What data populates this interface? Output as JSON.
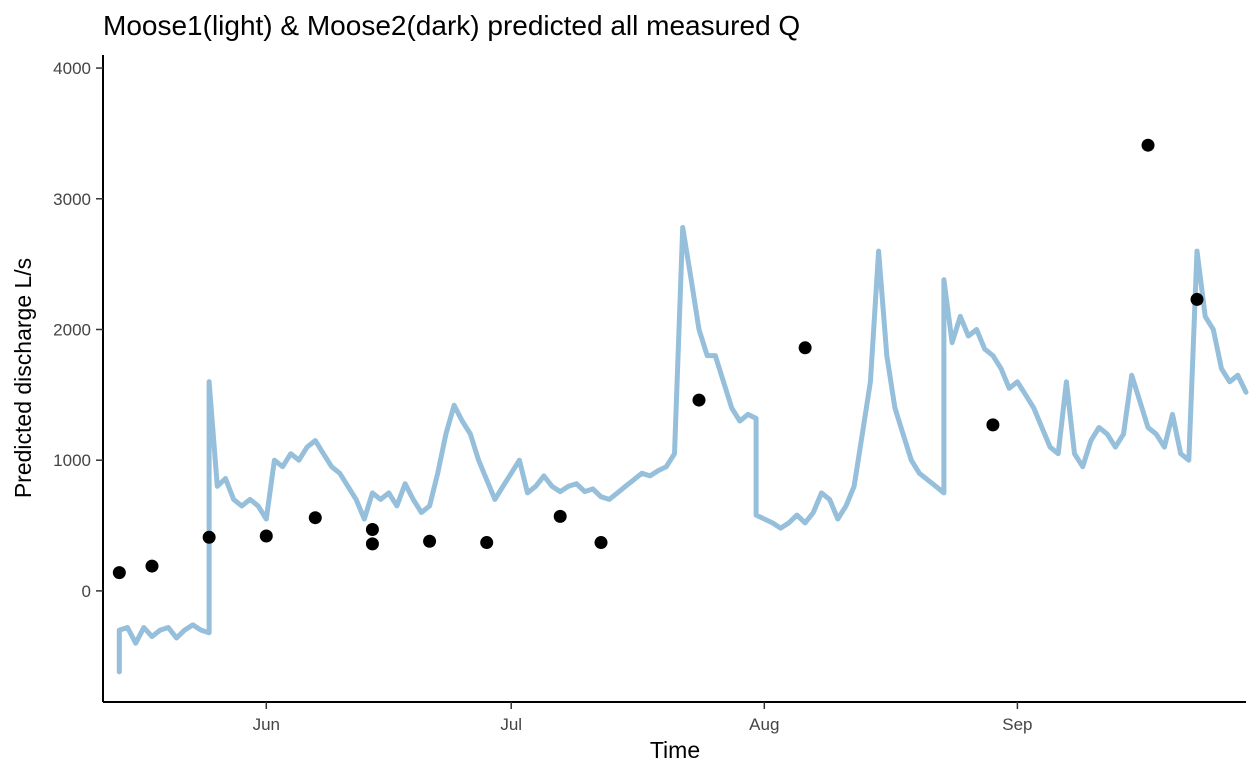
{
  "chart_data": {
    "type": "line",
    "title": "Moose1(light) & Moose2(dark) predicted all measured Q",
    "xlabel": "Time",
    "ylabel": "Predicted discharge L/s",
    "xlim": [
      "2021-05-12",
      "2021-09-29"
    ],
    "ylim": [
      -850,
      4100
    ],
    "x_ticks": [
      {
        "date": "2021-06-01",
        "label": "Jun"
      },
      {
        "date": "2021-07-01",
        "label": "Jul"
      },
      {
        "date": "2021-08-01",
        "label": "Aug"
      },
      {
        "date": "2021-09-01",
        "label": "Sep"
      }
    ],
    "y_ticks": [
      0,
      1000,
      2000,
      3000,
      4000
    ],
    "grid": false,
    "colors": {
      "light_blue": "#8fbcd8",
      "dark_blue": "#1f5fa6",
      "dark_red": "#8e1a24",
      "points": "#000000"
    },
    "series": [
      {
        "color": "#8fbcd8",
        "style": "line",
        "points": [
          [
            "2021-05-14",
            -620
          ],
          [
            "2021-05-14",
            -300
          ],
          [
            "2021-05-15",
            -280
          ],
          [
            "2021-05-16",
            -400
          ],
          [
            "2021-05-17",
            -280
          ],
          [
            "2021-05-18",
            -350
          ],
          [
            "2021-05-19",
            -300
          ],
          [
            "2021-05-20",
            -280
          ],
          [
            "2021-05-21",
            -360
          ],
          [
            "2021-05-22",
            -300
          ],
          [
            "2021-05-23",
            -260
          ],
          [
            "2021-05-24",
            -300
          ],
          [
            "2021-05-25",
            -320
          ],
          [
            "2021-05-25",
            1600
          ],
          [
            "2021-05-26",
            800
          ],
          [
            "2021-05-27",
            860
          ],
          [
            "2021-05-28",
            700
          ],
          [
            "2021-05-29",
            650
          ],
          [
            "2021-05-30",
            700
          ],
          [
            "2021-05-31",
            650
          ],
          [
            "2021-06-01",
            550
          ],
          [
            "2021-06-02",
            1000
          ],
          [
            "2021-06-03",
            950
          ],
          [
            "2021-06-04",
            1050
          ],
          [
            "2021-06-05",
            1000
          ],
          [
            "2021-06-06",
            1100
          ],
          [
            "2021-06-07",
            1150
          ],
          [
            "2021-06-08",
            1050
          ],
          [
            "2021-06-09",
            950
          ],
          [
            "2021-06-10",
            900
          ],
          [
            "2021-06-11",
            800
          ],
          [
            "2021-06-12",
            700
          ],
          [
            "2021-06-13",
            550
          ],
          [
            "2021-06-14",
            750
          ],
          [
            "2021-06-15",
            700
          ],
          [
            "2021-06-16",
            750
          ],
          [
            "2021-06-17",
            650
          ],
          [
            "2021-06-18",
            820
          ],
          [
            "2021-06-19",
            700
          ],
          [
            "2021-06-20",
            600
          ],
          [
            "2021-06-21",
            650
          ],
          [
            "2021-06-22",
            900
          ],
          [
            "2021-06-23",
            1200
          ],
          [
            "2021-06-24",
            1420
          ],
          [
            "2021-06-25",
            1300
          ],
          [
            "2021-06-26",
            1200
          ],
          [
            "2021-06-27",
            1000
          ],
          [
            "2021-06-28",
            850
          ],
          [
            "2021-06-29",
            700
          ],
          [
            "2021-06-30",
            800
          ],
          [
            "2021-07-01",
            900
          ],
          [
            "2021-07-02",
            1000
          ],
          [
            "2021-07-03",
            750
          ],
          [
            "2021-07-04",
            800
          ],
          [
            "2021-07-05",
            880
          ],
          [
            "2021-07-06",
            800
          ],
          [
            "2021-07-07",
            760
          ],
          [
            "2021-07-08",
            800
          ],
          [
            "2021-07-09",
            820
          ],
          [
            "2021-07-10",
            760
          ],
          [
            "2021-07-11",
            780
          ],
          [
            "2021-07-12",
            720
          ],
          [
            "2021-07-13",
            700
          ],
          [
            "2021-07-14",
            750
          ],
          [
            "2021-07-15",
            800
          ],
          [
            "2021-07-16",
            850
          ],
          [
            "2021-07-17",
            900
          ],
          [
            "2021-07-18",
            880
          ],
          [
            "2021-07-19",
            920
          ],
          [
            "2021-07-20",
            950
          ],
          [
            "2021-07-21",
            1050
          ],
          [
            "2021-07-22",
            2780
          ],
          [
            "2021-07-23",
            2400
          ],
          [
            "2021-07-24",
            2000
          ],
          [
            "2021-07-25",
            1800
          ],
          [
            "2021-07-26",
            1800
          ],
          [
            "2021-07-27",
            1600
          ],
          [
            "2021-07-28",
            1400
          ],
          [
            "2021-07-29",
            1300
          ],
          [
            "2021-07-30",
            1350
          ],
          [
            "2021-07-31",
            1320
          ],
          [
            "2021-07-31",
            580
          ],
          [
            "2021-08-01",
            550
          ],
          [
            "2021-08-02",
            520
          ],
          [
            "2021-08-03",
            480
          ],
          [
            "2021-08-04",
            520
          ],
          [
            "2021-08-05",
            580
          ],
          [
            "2021-08-06",
            520
          ],
          [
            "2021-08-07",
            600
          ],
          [
            "2021-08-08",
            750
          ],
          [
            "2021-08-09",
            700
          ],
          [
            "2021-08-10",
            550
          ],
          [
            "2021-08-11",
            650
          ],
          [
            "2021-08-12",
            800
          ],
          [
            "2021-08-13",
            1200
          ],
          [
            "2021-08-14",
            1600
          ],
          [
            "2021-08-15",
            2600
          ],
          [
            "2021-08-16",
            1800
          ],
          [
            "2021-08-17",
            1400
          ],
          [
            "2021-08-18",
            1200
          ],
          [
            "2021-08-19",
            1000
          ],
          [
            "2021-08-20",
            900
          ],
          [
            "2021-08-21",
            850
          ],
          [
            "2021-08-22",
            800
          ],
          [
            "2021-08-23",
            750
          ],
          [
            "2021-08-23",
            2380
          ],
          [
            "2021-08-24",
            1900
          ],
          [
            "2021-08-25",
            2100
          ],
          [
            "2021-08-26",
            1950
          ],
          [
            "2021-08-27",
            2000
          ],
          [
            "2021-08-28",
            1850
          ],
          [
            "2021-08-29",
            1800
          ],
          [
            "2021-08-30",
            1700
          ],
          [
            "2021-08-31",
            1550
          ],
          [
            "2021-09-01",
            1600
          ],
          [
            "2021-09-02",
            1500
          ],
          [
            "2021-09-03",
            1400
          ],
          [
            "2021-09-04",
            1250
          ],
          [
            "2021-09-05",
            1100
          ],
          [
            "2021-09-06",
            1050
          ],
          [
            "2021-09-07",
            1600
          ],
          [
            "2021-09-08",
            1050
          ],
          [
            "2021-09-09",
            950
          ],
          [
            "2021-09-10",
            1150
          ],
          [
            "2021-09-11",
            1250
          ],
          [
            "2021-09-12",
            1200
          ],
          [
            "2021-09-13",
            1100
          ],
          [
            "2021-09-14",
            1200
          ],
          [
            "2021-09-15",
            1650
          ],
          [
            "2021-09-16",
            1450
          ],
          [
            "2021-09-17",
            1250
          ],
          [
            "2021-09-18",
            1200
          ],
          [
            "2021-09-19",
            1100
          ],
          [
            "2021-09-20",
            1350
          ],
          [
            "2021-09-21",
            1050
          ],
          [
            "2021-09-22",
            1000
          ],
          [
            "2021-09-23",
            2600
          ],
          [
            "2021-09-24",
            2100
          ],
          [
            "2021-09-25",
            2000
          ],
          [
            "2021-09-26",
            1700
          ],
          [
            "2021-09-27",
            1600
          ],
          [
            "2021-09-28",
            1650
          ],
          [
            "2021-09-29",
            1520
          ]
        ]
      }
    ],
    "measured_points": [
      [
        "2021-05-14",
        140
      ],
      [
        "2021-05-18",
        190
      ],
      [
        "2021-05-25",
        410
      ],
      [
        "2021-06-01",
        420
      ],
      [
        "2021-06-07",
        560
      ],
      [
        "2021-06-14",
        470
      ],
      [
        "2021-06-14",
        360
      ],
      [
        "2021-06-21",
        380
      ],
      [
        "2021-06-28",
        370
      ],
      [
        "2021-07-07",
        570
      ],
      [
        "2021-07-12",
        370
      ],
      [
        "2021-07-24",
        1460
      ],
      [
        "2021-08-06",
        1860
      ],
      [
        "2021-08-29",
        1270
      ],
      [
        "2021-09-17",
        3410
      ],
      [
        "2021-09-23",
        2230
      ]
    ]
  }
}
